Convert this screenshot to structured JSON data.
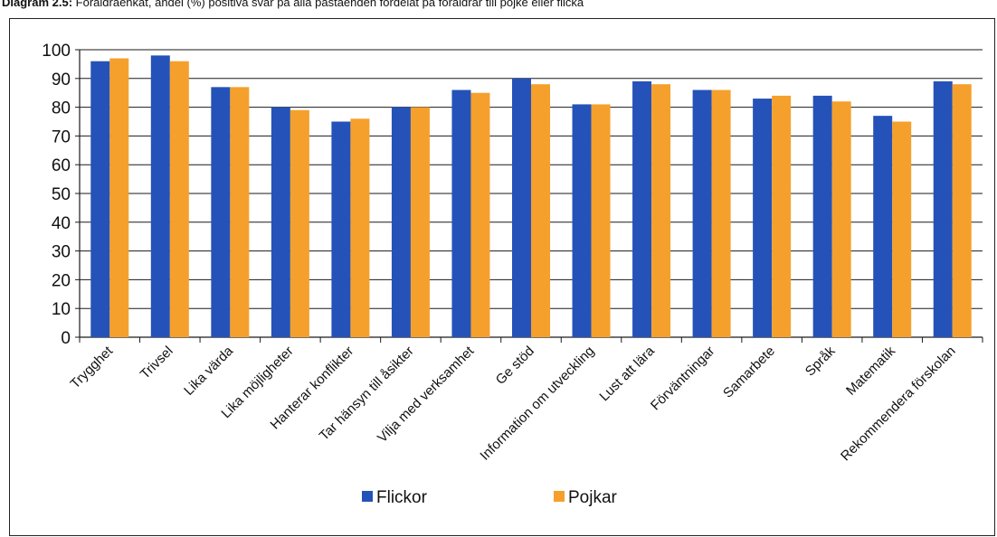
{
  "caption": {
    "bold": "Diagram 2.5:",
    "text": " Föräldraenkät, andel (%) positiva svar på alla påståenden fördelat på föräldrar till pojke eller flicka"
  },
  "chart_data": {
    "type": "bar",
    "title": "",
    "xlabel": "",
    "ylabel": "",
    "ylim": [
      0,
      100
    ],
    "yticks": [
      0,
      10,
      20,
      30,
      40,
      50,
      60,
      70,
      80,
      90,
      100
    ],
    "grid": true,
    "legend_position": "bottom",
    "categories": [
      "Trygghet",
      "Trivsel",
      "Lika värda",
      "Lika möjligheter",
      "Hanterar konflikter",
      "Tar hänsyn till åsikter",
      "Vilja med  verksamhet",
      "Ge stöd",
      "Information om utveckling",
      "Lust att lära",
      "Förväntningar",
      "Samarbete",
      "Språk",
      "Matematik",
      "Rekommendera förskolan"
    ],
    "series": [
      {
        "name": "Flickor",
        "color": "#2552b8",
        "values": [
          96,
          98,
          87,
          80,
          75,
          80,
          86,
          90,
          81,
          89,
          86,
          83,
          84,
          77,
          89
        ]
      },
      {
        "name": "Pojkar",
        "color": "#f5a02c",
        "values": [
          97,
          96,
          87,
          79,
          76,
          80,
          85,
          88,
          81,
          88,
          86,
          84,
          82,
          75,
          88
        ]
      }
    ]
  }
}
